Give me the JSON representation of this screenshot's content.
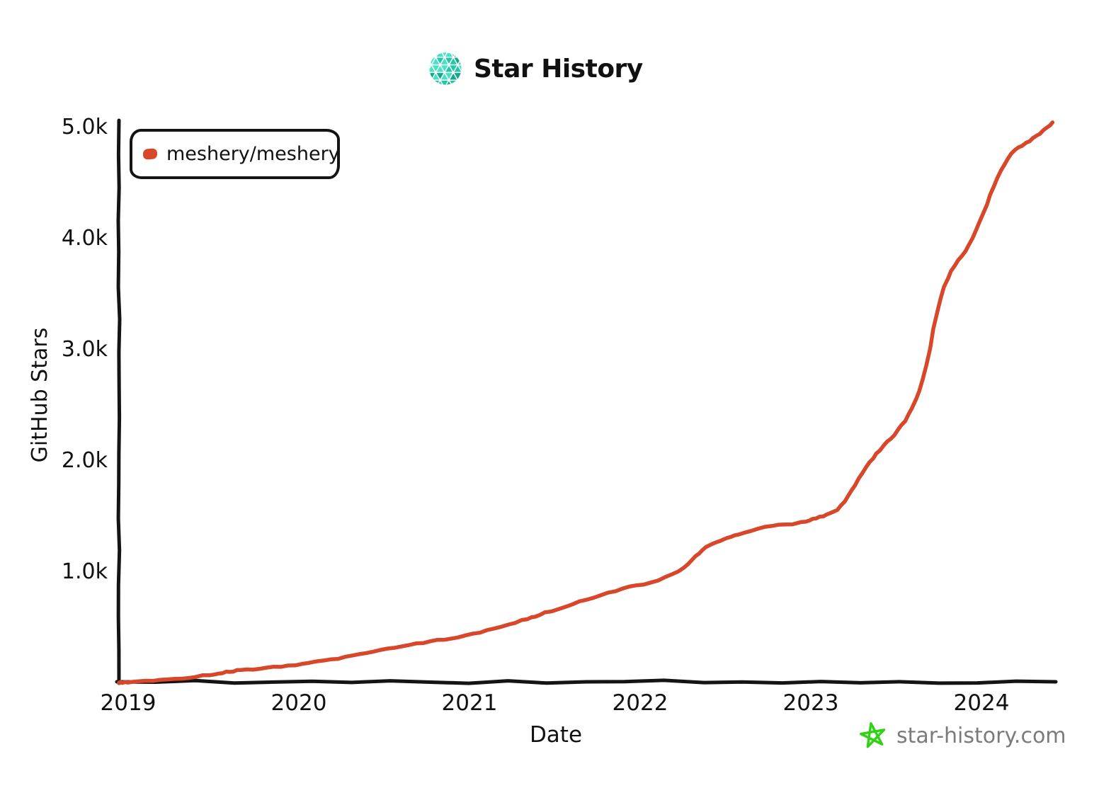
{
  "header": {
    "title": "Star History"
  },
  "colors": {
    "accent_teal": "#1fc9a8",
    "line_red": "#d8472a",
    "axis_black": "#141414",
    "watermark_gray": "#7b7b7b",
    "star_green": "#2fd313"
  },
  "watermark": {
    "text": "star-history.com"
  },
  "chart_data": {
    "type": "line",
    "title": "Star History",
    "xlabel": "Date",
    "ylabel": "GitHub Stars",
    "x_tick_labels": [
      "2019",
      "2020",
      "2021",
      "2022",
      "2023",
      "2024"
    ],
    "y_tick_labels": [
      "1.0k",
      "2.0k",
      "3.0k",
      "4.0k",
      "5.0k"
    ],
    "ylim": [
      0,
      5200
    ],
    "xlim_years": [
      2018.95,
      2024.55
    ],
    "grid": false,
    "legend_position": "top-left",
    "series": [
      {
        "name": "meshery/meshery",
        "color": "#d8472a",
        "points": [
          [
            "2019-01",
            8
          ],
          [
            "2019-03",
            25
          ],
          [
            "2019-05",
            45
          ],
          [
            "2019-07",
            80
          ],
          [
            "2019-08",
            105
          ],
          [
            "2019-09",
            118
          ],
          [
            "2019-11",
            138
          ],
          [
            "2020-01",
            170
          ],
          [
            "2020-03",
            205
          ],
          [
            "2020-05",
            250
          ],
          [
            "2020-07",
            305
          ],
          [
            "2020-09",
            350
          ],
          [
            "2020-11",
            390
          ],
          [
            "2021-01",
            435
          ],
          [
            "2021-03",
            500
          ],
          [
            "2021-05",
            575
          ],
          [
            "2021-06",
            620
          ],
          [
            "2021-08",
            700
          ],
          [
            "2021-10",
            785
          ],
          [
            "2021-12",
            860
          ],
          [
            "2022-02",
            910
          ],
          [
            "2022-04",
            1020
          ],
          [
            "2022-05",
            1160
          ],
          [
            "2022-06",
            1255
          ],
          [
            "2022-07",
            1300
          ],
          [
            "2022-08",
            1340
          ],
          [
            "2022-10",
            1415
          ],
          [
            "2022-12",
            1435
          ],
          [
            "2023-01",
            1470
          ],
          [
            "2023-02",
            1510
          ],
          [
            "2023-03",
            1560
          ],
          [
            "2023-04",
            1760
          ],
          [
            "2023-05",
            1970
          ],
          [
            "2023-06",
            2120
          ],
          [
            "2023-07",
            2250
          ],
          [
            "2023-08",
            2430
          ],
          [
            "2023-09",
            2750
          ],
          [
            "2023-10",
            3450
          ],
          [
            "2023-11",
            3750
          ],
          [
            "2023-12",
            3900
          ],
          [
            "2024-01",
            4180
          ],
          [
            "2024-02",
            4520
          ],
          [
            "2024-03",
            4760
          ],
          [
            "2024-04",
            4850
          ],
          [
            "2024-05",
            4930
          ],
          [
            "2024-06",
            5045
          ]
        ]
      }
    ]
  }
}
